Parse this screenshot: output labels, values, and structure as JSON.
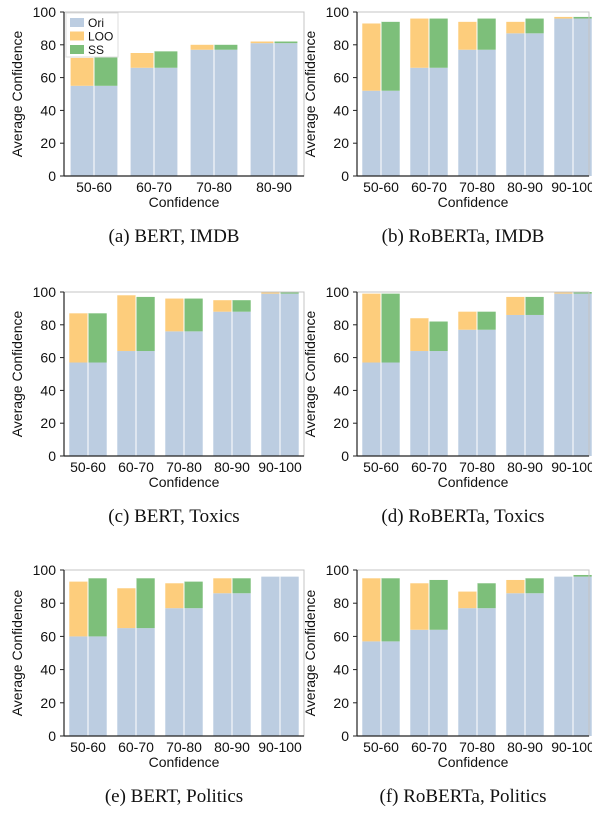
{
  "colors": {
    "Ori": "#bccde1",
    "LOO": "#fdcd7c",
    "SS": "#7dbf7a",
    "frame": "#c4c4c4"
  },
  "legend": [
    "Ori",
    "LOO",
    "SS"
  ],
  "chart_data": [
    {
      "type": "bar",
      "caption": "(a)  BERT, IMDB",
      "xlabel": "Confidence",
      "ylabel": "Average Confidence",
      "ylim": [
        0,
        100
      ],
      "yticks": [
        "0",
        "20",
        "40",
        "60",
        "80",
        "100"
      ],
      "categories": [
        "50-60",
        "60-70",
        "70-80",
        "80-90"
      ],
      "legend_placement": "top-left",
      "series": [
        {
          "name": "Ori",
          "values": [
            55,
            66,
            77,
            81
          ]
        },
        {
          "name": "LOO",
          "values": [
            72,
            75,
            80,
            82
          ]
        },
        {
          "name": "SS",
          "values": [
            74,
            76,
            80,
            82
          ]
        }
      ]
    },
    {
      "type": "bar",
      "caption": "(b)  RoBERTa, IMDB",
      "xlabel": "Confidence",
      "ylabel": "Average Confidence",
      "ylim": [
        0,
        100
      ],
      "yticks": [
        "0",
        "20",
        "40",
        "60",
        "80",
        "100"
      ],
      "categories": [
        "50-60",
        "60-70",
        "70-80",
        "80-90",
        "90-100"
      ],
      "series": [
        {
          "name": "Ori",
          "values": [
            52,
            66,
            77,
            87,
            96
          ]
        },
        {
          "name": "LOO",
          "values": [
            93,
            96,
            94,
            94,
            97
          ]
        },
        {
          "name": "SS",
          "values": [
            94,
            96,
            96,
            96,
            97
          ]
        }
      ]
    },
    {
      "type": "bar",
      "caption": "(c)  BERT, Toxics",
      "xlabel": "Confidence",
      "ylabel": "Average Confidence",
      "ylim": [
        0,
        100
      ],
      "yticks": [
        "0",
        "20",
        "40",
        "60",
        "80",
        "100"
      ],
      "categories": [
        "50-60",
        "60-70",
        "70-80",
        "80-90",
        "90-100"
      ],
      "series": [
        {
          "name": "Ori",
          "values": [
            57,
            64,
            76,
            88,
            99
          ]
        },
        {
          "name": "LOO",
          "values": [
            87,
            98,
            96,
            95,
            100
          ]
        },
        {
          "name": "SS",
          "values": [
            87,
            97,
            96,
            95,
            100
          ]
        }
      ]
    },
    {
      "type": "bar",
      "caption": "(d)  RoBERTa, Toxics",
      "xlabel": "Confidence",
      "ylabel": "Average Confidence",
      "ylim": [
        0,
        100
      ],
      "yticks": [
        "0",
        "20",
        "40",
        "60",
        "80",
        "100"
      ],
      "categories": [
        "50-60",
        "60-70",
        "70-80",
        "80-90",
        "90-100"
      ],
      "series": [
        {
          "name": "Ori",
          "values": [
            57,
            64,
            77,
            86,
            99
          ]
        },
        {
          "name": "LOO",
          "values": [
            99,
            84,
            88,
            97,
            100
          ]
        },
        {
          "name": "SS",
          "values": [
            99,
            82,
            88,
            97,
            100
          ]
        }
      ]
    },
    {
      "type": "bar",
      "caption": "(e)  BERT, Politics",
      "xlabel": "Confidence",
      "ylabel": "Average Confidence",
      "ylim": [
        0,
        100
      ],
      "yticks": [
        "0",
        "20",
        "40",
        "60",
        "80",
        "100"
      ],
      "categories": [
        "50-60",
        "60-70",
        "70-80",
        "80-90",
        "90-100"
      ],
      "series": [
        {
          "name": "Ori",
          "values": [
            60,
            65,
            77,
            86,
            96
          ]
        },
        {
          "name": "LOO",
          "values": [
            93,
            89,
            92,
            95,
            96
          ]
        },
        {
          "name": "SS",
          "values": [
            95,
            95,
            93,
            95,
            96
          ]
        }
      ]
    },
    {
      "type": "bar",
      "caption": "(f)  RoBERTa, Politics",
      "xlabel": "Confidence",
      "ylabel": "Average Confidence",
      "ylim": [
        0,
        100
      ],
      "yticks": [
        "0",
        "20",
        "40",
        "60",
        "80",
        "100"
      ],
      "categories": [
        "50-60",
        "60-70",
        "70-80",
        "80-90",
        "90-100"
      ],
      "series": [
        {
          "name": "Ori",
          "values": [
            57,
            64,
            77,
            86,
            96
          ]
        },
        {
          "name": "LOO",
          "values": [
            95,
            92,
            87,
            94,
            96
          ]
        },
        {
          "name": "SS",
          "values": [
            95,
            94,
            92,
            95,
            97
          ]
        }
      ]
    }
  ]
}
